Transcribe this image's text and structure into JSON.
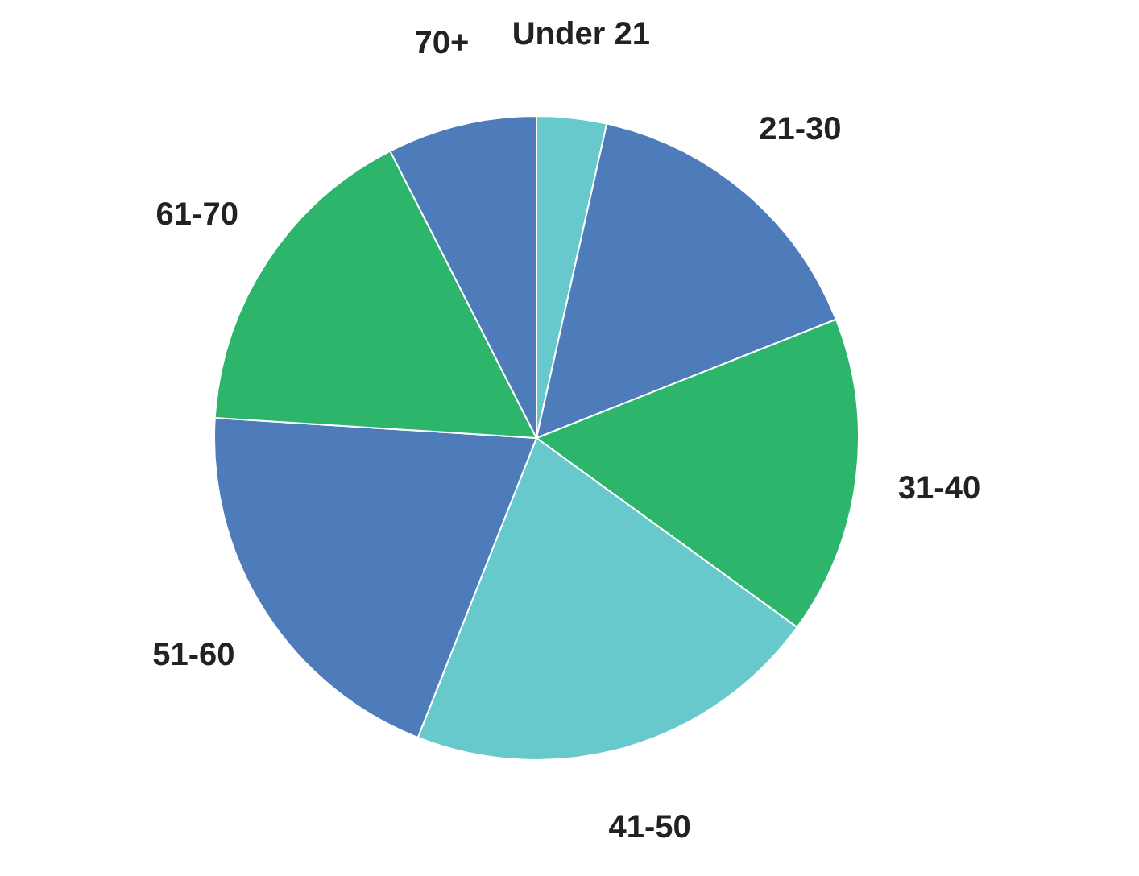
{
  "chart_data": {
    "type": "pie",
    "categories": [
      "Under 21",
      "21-30",
      "31-40",
      "41-50",
      "51-60",
      "61-70",
      "70+"
    ],
    "values": [
      3.5,
      15.5,
      16,
      21,
      20,
      16.5,
      7.5
    ],
    "colors": [
      "#68c9cc",
      "#4e7bba",
      "#2db56b",
      "#68c9cc",
      "#4e7bba",
      "#2db56b",
      "#4e7bba"
    ]
  }
}
